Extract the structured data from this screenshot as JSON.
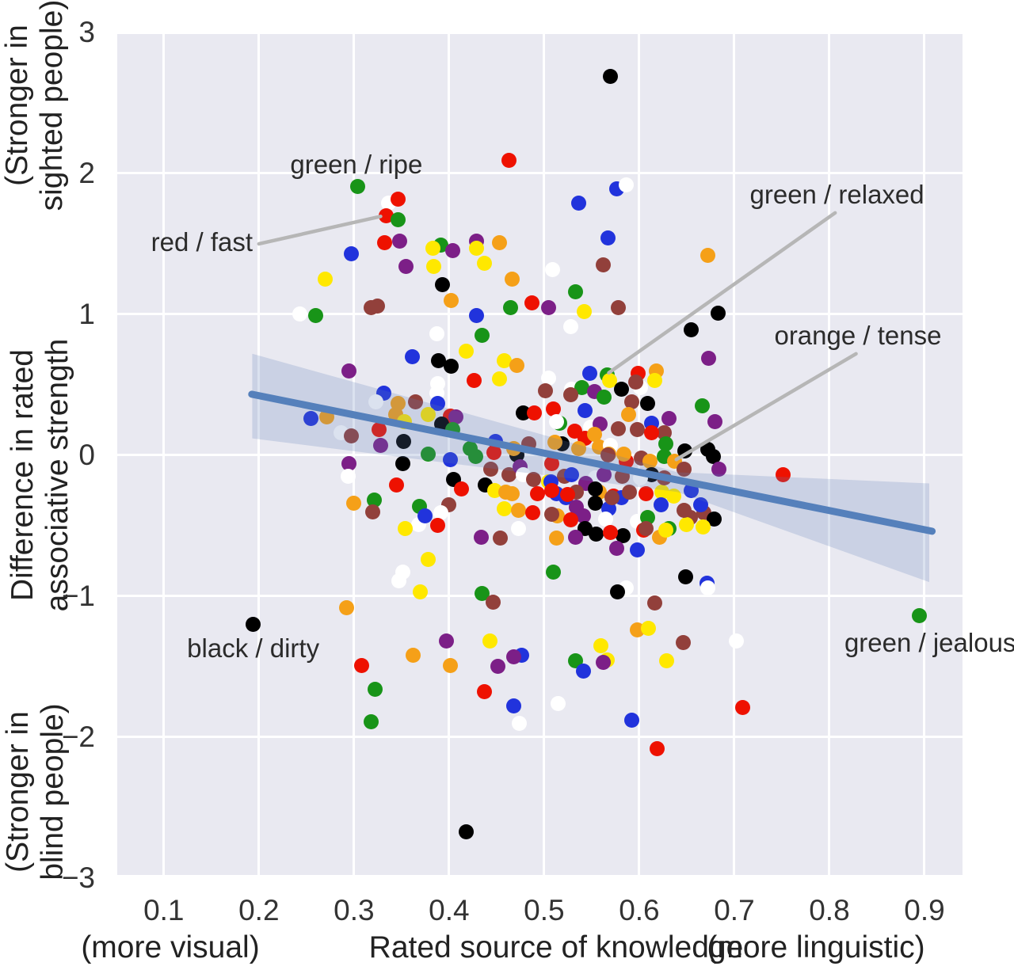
{
  "chart_data": {
    "type": "scatter",
    "title": "",
    "x_axis": {
      "label_center": "Rated source of knowledge",
      "label_left": "(more visual)",
      "label_right": "(more linguistic)",
      "ticks": [
        0.1,
        0.2,
        0.3,
        0.4,
        0.5,
        0.6,
        0.7,
        0.8,
        0.9
      ],
      "tick_labels": [
        "0.1",
        "0.2",
        "0.3",
        "0.4",
        "0.5",
        "0.6",
        "0.7",
        "0.8",
        "0.9"
      ],
      "lim": [
        0.051,
        0.94
      ]
    },
    "y_axis": {
      "label_top_line1": "(Stronger in",
      "label_top_line2": "sighted people)",
      "label_mid_line1": "Difference in rated",
      "label_mid_line2": "associative strength",
      "label_bottom_line1": "(Stronger in",
      "label_bottom_line2": "blind people)",
      "ticks": [
        3,
        2,
        1,
        0,
        -1,
        -2,
        -3
      ],
      "tick_labels": [
        "3",
        "2",
        "1",
        "0",
        "−1",
        "−2",
        "−3"
      ],
      "lim": [
        -2.978,
        3.0
      ]
    },
    "grid": true,
    "legend_position": "none",
    "plot_bg_color": "#e9e9f1",
    "grid_color": "#ffffff",
    "colors": {
      "r": "#ee1100",
      "g": "#189418",
      "b": "#2133dc",
      "o": "#f5a018",
      "y": "#ffe800",
      "k": "#000000",
      "w": "#ffffff",
      "p": "#7c1f87",
      "n": "#92403b"
    },
    "regression": {
      "line": [
        [
          0.1925,
          0.433
        ],
        [
          0.908,
          -0.539
        ]
      ],
      "color": "#5580bb",
      "line_width": 9,
      "band": [
        [
          0.193,
          0.72
        ],
        [
          0.64,
          -0.12
        ],
        [
          0.905,
          -0.2
        ],
        [
          0.905,
          -0.9
        ],
        [
          0.64,
          -0.26
        ],
        [
          0.193,
          0.12
        ]
      ],
      "band_color": "rgba(93,124,180,0.22)"
    },
    "leader_color": "#b6b6b6",
    "annotations": [
      {
        "text": "green / ripe",
        "x": 0.3025,
        "y": 2.06,
        "leader": null
      },
      {
        "text": "red / fast",
        "x": 0.14,
        "y": 1.51,
        "leader": [
          0.2,
          1.5,
          0.328,
          1.695
        ]
      },
      {
        "text": "green / relaxed",
        "x": 0.808,
        "y": 1.85,
        "leader": [
          0.806,
          1.72,
          0.568,
          0.585
        ]
      },
      {
        "text": "orange / tense",
        "x": 0.83,
        "y": 0.85,
        "leader": [
          0.828,
          0.72,
          0.639,
          -0.03
        ]
      },
      {
        "text": "black / dirty",
        "x": 0.194,
        "y": -1.37,
        "leader": null
      },
      {
        "text": "green / jealous",
        "x": 0.906,
        "y": -1.33,
        "leader": null
      }
    ],
    "points": [
      [
        0.304,
        1.91,
        "g"
      ],
      [
        0.336,
        1.79,
        "w"
      ],
      [
        0.346,
        1.82,
        "r"
      ],
      [
        0.334,
        1.7,
        "r"
      ],
      [
        0.346,
        1.67,
        "g"
      ],
      [
        0.332,
        1.51,
        "r"
      ],
      [
        0.348,
        1.52,
        "p"
      ],
      [
        0.297,
        1.43,
        "b"
      ],
      [
        0.27,
        1.25,
        "y"
      ],
      [
        0.391,
        1.49,
        "g"
      ],
      [
        0.383,
        1.47,
        "y"
      ],
      [
        0.404,
        1.45,
        "p"
      ],
      [
        0.429,
        1.52,
        "p"
      ],
      [
        0.429,
        1.47,
        "y"
      ],
      [
        0.453,
        1.51,
        "o"
      ],
      [
        0.437,
        1.36,
        "y"
      ],
      [
        0.355,
        1.34,
        "p"
      ],
      [
        0.384,
        1.34,
        "y"
      ],
      [
        0.393,
        1.21,
        "k"
      ],
      [
        0.402,
        1.1,
        "o"
      ],
      [
        0.466,
        1.25,
        "o"
      ],
      [
        0.465,
        1.05,
        "g"
      ],
      [
        0.463,
        2.09,
        "r"
      ],
      [
        0.318,
        1.05,
        "n"
      ],
      [
        0.325,
        1.06,
        "n"
      ],
      [
        0.243,
        1.0,
        "w"
      ],
      [
        0.26,
        0.99,
        "g"
      ],
      [
        0.487,
        1.08,
        "r"
      ],
      [
        0.429,
        0.99,
        "b"
      ],
      [
        0.57,
        2.69,
        "k"
      ],
      [
        0.576,
        1.89,
        "b"
      ],
      [
        0.586,
        1.92,
        "w"
      ],
      [
        0.536,
        1.79,
        "b"
      ],
      [
        0.567,
        1.54,
        "b"
      ],
      [
        0.672,
        1.42,
        "o"
      ],
      [
        0.509,
        1.32,
        "w"
      ],
      [
        0.562,
        1.35,
        "n"
      ],
      [
        0.533,
        1.16,
        "g"
      ],
      [
        0.505,
        1.05,
        "p"
      ],
      [
        0.542,
        1.02,
        "y"
      ],
      [
        0.578,
        1.05,
        "n"
      ],
      [
        0.683,
        1.01,
        "k"
      ],
      [
        0.435,
        0.85,
        "g"
      ],
      [
        0.387,
        0.86,
        "w"
      ],
      [
        0.418,
        0.74,
        "y"
      ],
      [
        0.361,
        0.7,
        "b"
      ],
      [
        0.389,
        0.67,
        "k"
      ],
      [
        0.402,
        0.63,
        "k"
      ],
      [
        0.295,
        0.6,
        "p"
      ],
      [
        0.458,
        0.67,
        "y"
      ],
      [
        0.471,
        0.64,
        "o"
      ],
      [
        0.453,
        0.54,
        "y"
      ],
      [
        0.426,
        0.53,
        "r"
      ],
      [
        0.388,
        0.51,
        "w"
      ],
      [
        0.387,
        0.44,
        "w"
      ],
      [
        0.331,
        0.44,
        "b"
      ],
      [
        0.323,
        0.38,
        "w"
      ],
      [
        0.346,
        0.37,
        "o"
      ],
      [
        0.344,
        0.29,
        "o"
      ],
      [
        0.365,
        0.38,
        "n"
      ],
      [
        0.388,
        0.37,
        "b"
      ],
      [
        0.255,
        0.26,
        "b"
      ],
      [
        0.271,
        0.27,
        "o"
      ],
      [
        0.353,
        0.24,
        "y"
      ],
      [
        0.378,
        0.29,
        "y"
      ],
      [
        0.401,
        0.28,
        "r"
      ],
      [
        0.407,
        0.27,
        "p"
      ],
      [
        0.392,
        0.22,
        "k"
      ],
      [
        0.286,
        0.16,
        "w"
      ],
      [
        0.297,
        0.14,
        "n"
      ],
      [
        0.326,
        0.18,
        "r"
      ],
      [
        0.404,
        0.18,
        "g"
      ],
      [
        0.378,
        0.01,
        "g"
      ],
      [
        0.328,
        0.07,
        "p"
      ],
      [
        0.352,
        0.1,
        "k"
      ],
      [
        0.422,
        0.05,
        "g"
      ],
      [
        0.401,
        -0.03,
        "b"
      ],
      [
        0.428,
        -0.01,
        "g"
      ],
      [
        0.295,
        -0.06,
        "p"
      ],
      [
        0.351,
        -0.06,
        "k"
      ],
      [
        0.294,
        -0.15,
        "w"
      ],
      [
        0.444,
        -0.1,
        "n"
      ],
      [
        0.463,
        -0.14,
        "n"
      ],
      [
        0.405,
        -0.17,
        "k"
      ],
      [
        0.345,
        -0.21,
        "r"
      ],
      [
        0.413,
        -0.24,
        "r"
      ],
      [
        0.438,
        -0.21,
        "k"
      ],
      [
        0.448,
        -0.25,
        "y"
      ],
      [
        0.46,
        -0.26,
        "o"
      ],
      [
        0.466,
        -0.27,
        "o"
      ],
      [
        0.3,
        -0.34,
        "o"
      ],
      [
        0.321,
        -0.32,
        "g"
      ],
      [
        0.32,
        -0.4,
        "n"
      ],
      [
        0.369,
        -0.36,
        "g"
      ],
      [
        0.4,
        -0.35,
        "n"
      ],
      [
        0.391,
        -0.41,
        "w"
      ],
      [
        0.368,
        -0.49,
        "w"
      ],
      [
        0.354,
        -0.52,
        "y"
      ],
      [
        0.388,
        -0.5,
        "r"
      ],
      [
        0.375,
        -0.43,
        "b"
      ],
      [
        0.434,
        -0.58,
        "p"
      ],
      [
        0.378,
        -0.74,
        "y"
      ],
      [
        0.351,
        -0.83,
        "w"
      ],
      [
        0.347,
        -0.89,
        "w"
      ],
      [
        0.37,
        -0.97,
        "y"
      ],
      [
        0.435,
        -0.98,
        "g"
      ],
      [
        0.528,
        0.91,
        "w"
      ],
      [
        0.655,
        0.89,
        "k"
      ],
      [
        0.673,
        0.69,
        "p"
      ],
      [
        0.599,
        0.58,
        "r"
      ],
      [
        0.618,
        0.6,
        "o"
      ],
      [
        0.616,
        0.53,
        "y"
      ],
      [
        0.548,
        0.58,
        "b"
      ],
      [
        0.566,
        0.57,
        "g"
      ],
      [
        0.569,
        0.53,
        "y"
      ],
      [
        0.505,
        0.55,
        "w"
      ],
      [
        0.529,
        0.47,
        "w"
      ],
      [
        0.54,
        0.48,
        "g"
      ],
      [
        0.553,
        0.45,
        "p"
      ],
      [
        0.528,
        0.43,
        "n"
      ],
      [
        0.581,
        0.47,
        "k"
      ],
      [
        0.601,
        0.48,
        "w"
      ],
      [
        0.592,
        0.38,
        "n"
      ],
      [
        0.609,
        0.37,
        "k"
      ],
      [
        0.589,
        0.29,
        "o"
      ],
      [
        0.613,
        0.23,
        "b"
      ],
      [
        0.631,
        0.26,
        "p"
      ],
      [
        0.626,
        0.16,
        "n"
      ],
      [
        0.666,
        0.35,
        "g"
      ],
      [
        0.68,
        0.24,
        "p"
      ],
      [
        0.51,
        0.33,
        "r"
      ],
      [
        0.543,
        0.32,
        "b"
      ],
      [
        0.516,
        0.23,
        "g"
      ],
      [
        0.598,
        0.18,
        "n"
      ],
      [
        0.549,
        0.2,
        "w"
      ],
      [
        0.559,
        0.22,
        "p"
      ],
      [
        0.532,
        0.17,
        "r"
      ],
      [
        0.543,
        0.12,
        "r"
      ],
      [
        0.553,
        0.15,
        "o"
      ],
      [
        0.558,
        0.06,
        "o"
      ],
      [
        0.519,
        0.08,
        "k"
      ],
      [
        0.511,
        0.09,
        "o"
      ],
      [
        0.57,
        0.07,
        "w"
      ],
      [
        0.568,
        0.01,
        "o"
      ],
      [
        0.586,
        -0.04,
        "r"
      ],
      [
        0.602,
        -0.02,
        "n"
      ],
      [
        0.611,
        -0.04,
        "o"
      ],
      [
        0.672,
        0.04,
        "k"
      ],
      [
        0.678,
        -0.01,
        "k"
      ],
      [
        0.626,
        -0.01,
        "g"
      ],
      [
        0.637,
        -0.04,
        "o"
      ],
      [
        0.684,
        -0.1,
        "p"
      ],
      [
        0.751,
        -0.14,
        "r"
      ],
      [
        0.508,
        -0.06,
        "r"
      ],
      [
        0.521,
        -0.15,
        "n"
      ],
      [
        0.529,
        -0.14,
        "b"
      ],
      [
        0.554,
        -0.16,
        "w"
      ],
      [
        0.544,
        -0.2,
        "p"
      ],
      [
        0.505,
        -0.19,
        "y"
      ],
      [
        0.513,
        -0.27,
        "b"
      ],
      [
        0.523,
        -0.3,
        "b"
      ],
      [
        0.534,
        -0.26,
        "n"
      ],
      [
        0.558,
        -0.26,
        "o"
      ],
      [
        0.573,
        -0.29,
        "r"
      ],
      [
        0.581,
        -0.3,
        "b"
      ],
      [
        0.554,
        -0.34,
        "k"
      ],
      [
        0.568,
        -0.38,
        "b"
      ],
      [
        0.534,
        -0.37,
        "p"
      ],
      [
        0.541,
        -0.43,
        "p"
      ],
      [
        0.514,
        -0.43,
        "o"
      ],
      [
        0.565,
        -0.45,
        "w"
      ],
      [
        0.598,
        -0.47,
        "w"
      ],
      [
        0.609,
        -0.44,
        "g"
      ],
      [
        0.624,
        -0.26,
        "y"
      ],
      [
        0.623,
        -0.35,
        "b"
      ],
      [
        0.654,
        -0.44,
        "n"
      ],
      [
        0.668,
        -0.41,
        "n"
      ],
      [
        0.679,
        -0.45,
        "k"
      ],
      [
        0.65,
        -0.49,
        "y"
      ],
      [
        0.667,
        -0.51,
        "y"
      ],
      [
        0.605,
        -0.53,
        "r"
      ],
      [
        0.621,
        -0.58,
        "o"
      ],
      [
        0.631,
        -0.52,
        "g"
      ],
      [
        0.555,
        -0.56,
        "k"
      ],
      [
        0.583,
        -0.57,
        "k"
      ],
      [
        0.576,
        -0.66,
        "p"
      ],
      [
        0.598,
        -0.67,
        "b"
      ],
      [
        0.51,
        -0.83,
        "g"
      ],
      [
        0.649,
        -0.86,
        "k"
      ],
      [
        0.671,
        -0.91,
        "b"
      ],
      [
        0.672,
        -0.94,
        "w"
      ],
      [
        0.586,
        -0.94,
        "w"
      ],
      [
        0.577,
        -0.97,
        "k"
      ],
      [
        0.501,
        0.46,
        "n"
      ],
      [
        0.563,
        0.41,
        "g"
      ],
      [
        0.596,
        0.52,
        "n"
      ],
      [
        0.478,
        0.3,
        "k"
      ],
      [
        0.49,
        0.3,
        "r"
      ],
      [
        0.513,
        0.24,
        "w"
      ],
      [
        0.578,
        0.19,
        "n"
      ],
      [
        0.613,
        0.16,
        "r"
      ],
      [
        0.449,
        0.1,
        "b"
      ],
      [
        0.447,
        0.02,
        "r"
      ],
      [
        0.471,
        0.0,
        "k"
      ],
      [
        0.468,
        0.05,
        "o"
      ],
      [
        0.484,
        0.08,
        "n"
      ],
      [
        0.536,
        0.05,
        "o"
      ],
      [
        0.567,
        0.0,
        "n"
      ],
      [
        0.584,
        0.01,
        "o"
      ],
      [
        0.648,
        0.03,
        "k"
      ],
      [
        0.628,
        0.08,
        "g"
      ],
      [
        0.475,
        -0.08,
        "p"
      ],
      [
        0.478,
        -0.14,
        "w"
      ],
      [
        0.489,
        -0.17,
        "n"
      ],
      [
        0.507,
        -0.19,
        "b"
      ],
      [
        0.563,
        -0.14,
        "p"
      ],
      [
        0.582,
        -0.15,
        "n"
      ],
      [
        0.613,
        -0.14,
        "k"
      ],
      [
        0.601,
        -0.16,
        "w"
      ],
      [
        0.626,
        -0.16,
        "n"
      ],
      [
        0.647,
        -0.1,
        "n"
      ],
      [
        0.493,
        -0.27,
        "r"
      ],
      [
        0.508,
        -0.25,
        "r"
      ],
      [
        0.525,
        -0.28,
        "r"
      ],
      [
        0.554,
        -0.24,
        "k"
      ],
      [
        0.571,
        -0.3,
        "n"
      ],
      [
        0.59,
        -0.26,
        "n"
      ],
      [
        0.607,
        -0.27,
        "r"
      ],
      [
        0.636,
        -0.29,
        "y"
      ],
      [
        0.655,
        -0.25,
        "b"
      ],
      [
        0.458,
        -0.38,
        "y"
      ],
      [
        0.473,
        -0.39,
        "o"
      ],
      [
        0.488,
        -0.41,
        "r"
      ],
      [
        0.508,
        -0.42,
        "n"
      ],
      [
        0.528,
        -0.46,
        "r"
      ],
      [
        0.543,
        -0.52,
        "k"
      ],
      [
        0.473,
        -0.52,
        "w"
      ],
      [
        0.454,
        -0.59,
        "n"
      ],
      [
        0.513,
        -0.59,
        "o"
      ],
      [
        0.533,
        -0.58,
        "p"
      ],
      [
        0.57,
        -0.55,
        "r"
      ],
      [
        0.607,
        -0.52,
        "n"
      ],
      [
        0.628,
        -0.53,
        "y"
      ],
      [
        0.647,
        -0.39,
        "n"
      ],
      [
        0.665,
        -0.35,
        "b"
      ],
      [
        0.292,
        -1.08,
        "o"
      ],
      [
        0.194,
        -1.2,
        "k"
      ],
      [
        0.446,
        -1.04,
        "n"
      ],
      [
        0.397,
        -1.32,
        "p"
      ],
      [
        0.443,
        -1.32,
        "y"
      ],
      [
        0.362,
        -1.42,
        "o"
      ],
      [
        0.476,
        -1.42,
        "b"
      ],
      [
        0.468,
        -1.43,
        "p"
      ],
      [
        0.401,
        -1.49,
        "o"
      ],
      [
        0.308,
        -1.49,
        "r"
      ],
      [
        0.451,
        -1.5,
        "p"
      ],
      [
        0.322,
        -1.66,
        "g"
      ],
      [
        0.437,
        -1.68,
        "r"
      ],
      [
        0.468,
        -1.78,
        "b"
      ],
      [
        0.318,
        -1.89,
        "g"
      ],
      [
        0.474,
        -1.9,
        "w"
      ],
      [
        0.418,
        -2.67,
        "k"
      ],
      [
        0.616,
        -1.05,
        "n"
      ],
      [
        0.598,
        -1.24,
        "o"
      ],
      [
        0.61,
        -1.23,
        "y"
      ],
      [
        0.56,
        -1.35,
        "y"
      ],
      [
        0.646,
        -1.33,
        "n"
      ],
      [
        0.566,
        -1.45,
        "y"
      ],
      [
        0.562,
        -1.47,
        "p"
      ],
      [
        0.533,
        -1.46,
        "g"
      ],
      [
        0.541,
        -1.53,
        "b"
      ],
      [
        0.702,
        -1.32,
        "w"
      ],
      [
        0.629,
        -1.46,
        "y"
      ],
      [
        0.515,
        -1.76,
        "w"
      ],
      [
        0.709,
        -1.79,
        "r"
      ],
      [
        0.592,
        -1.88,
        "b"
      ],
      [
        0.619,
        -2.08,
        "r"
      ],
      [
        0.895,
        -1.14,
        "g"
      ]
    ]
  }
}
